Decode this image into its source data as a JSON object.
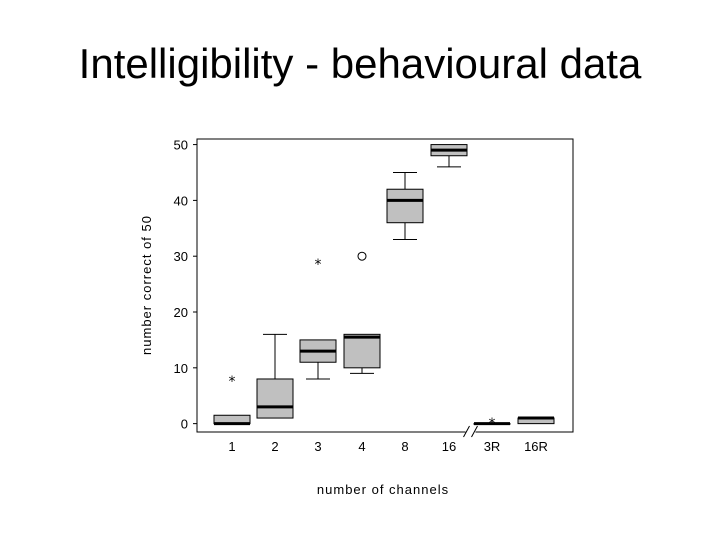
{
  "title": "Intelligibility - behavioural data",
  "chart_data": {
    "type": "boxplot",
    "xlabel": "number of channels",
    "ylabel": "number correct of 50",
    "ylim": [
      -1.5,
      51
    ],
    "yticks": [
      0,
      10,
      20,
      30,
      40,
      50
    ],
    "categories": [
      "1",
      "2",
      "3",
      "4",
      "8",
      "16",
      "3R",
      "16R"
    ],
    "axis_break_between": [
      "16",
      "3R"
    ],
    "grid": false,
    "box_color": "#c0c0c0",
    "boxes": [
      {
        "category": "1",
        "whisker_low": 0,
        "q1": 0,
        "median": 0,
        "q3": 1.5,
        "whisker_high": 1.5,
        "outliers": [],
        "extremes": [
          8
        ]
      },
      {
        "category": "2",
        "whisker_low": 1,
        "q1": 1,
        "median": 3,
        "q3": 8,
        "whisker_high": 16,
        "outliers": [],
        "extremes": []
      },
      {
        "category": "3",
        "whisker_low": 8,
        "q1": 11,
        "median": 13,
        "q3": 15,
        "whisker_high": 15,
        "outliers": [],
        "extremes": [
          29
        ]
      },
      {
        "category": "4",
        "whisker_low": 9,
        "q1": 10,
        "median": 15.5,
        "q3": 16,
        "whisker_high": 16,
        "outliers": [
          30
        ],
        "extremes": []
      },
      {
        "category": "8",
        "whisker_low": 33,
        "q1": 36,
        "median": 40,
        "q3": 42,
        "whisker_high": 45,
        "outliers": [],
        "extremes": []
      },
      {
        "category": "16",
        "whisker_low": 46,
        "q1": 48,
        "median": 49,
        "q3": 50,
        "whisker_high": 50,
        "outliers": [],
        "extremes": []
      },
      {
        "category": "3R",
        "whisker_low": 0,
        "q1": 0,
        "median": 0,
        "q3": 0,
        "whisker_high": 0,
        "outliers": [],
        "extremes": [
          0.5
        ]
      },
      {
        "category": "16R",
        "whisker_low": 0,
        "q1": 0,
        "median": 1,
        "q3": 1,
        "whisker_high": 1,
        "outliers": [],
        "extremes": []
      }
    ]
  }
}
